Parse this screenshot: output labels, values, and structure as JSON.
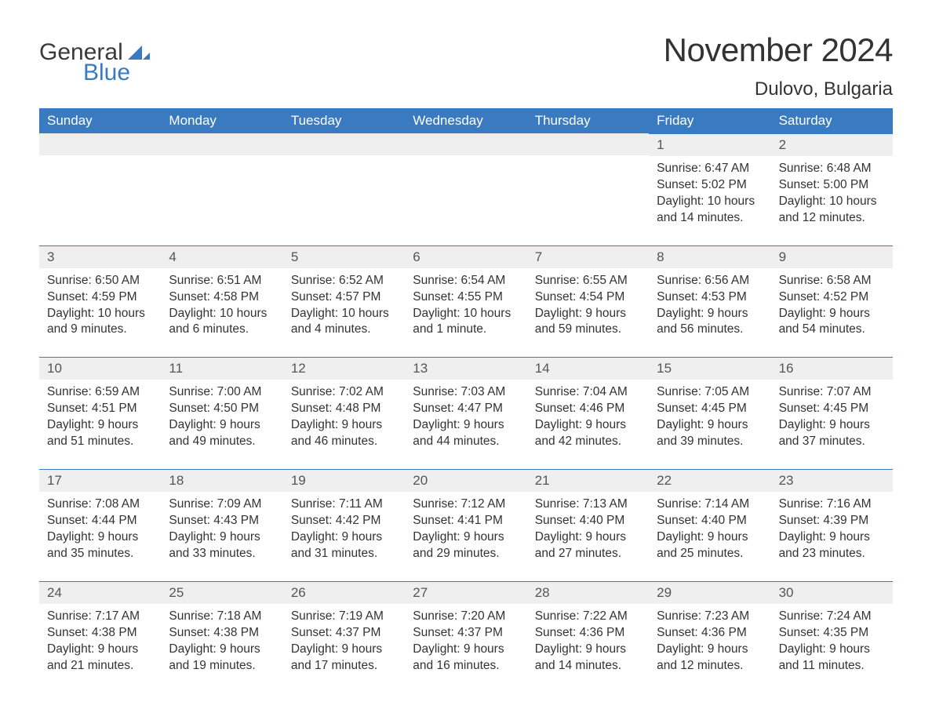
{
  "logo": {
    "text1": "General",
    "text2": "Blue"
  },
  "title": "November 2024",
  "location": "Dulovo, Bulgaria",
  "colors": {
    "header_bg": "#3a7ac0",
    "header_text": "#ffffff",
    "daynum_bg": "#efefef",
    "daynum_border": "#3a7ac0",
    "body_text": "#333333",
    "page_bg": "#ffffff"
  },
  "day_labels": [
    "Sunday",
    "Monday",
    "Tuesday",
    "Wednesday",
    "Thursday",
    "Friday",
    "Saturday"
  ],
  "weeks": [
    [
      null,
      null,
      null,
      null,
      null,
      {
        "n": "1",
        "sr": "Sunrise: 6:47 AM",
        "ss": "Sunset: 5:02 PM",
        "dl": "Daylight: 10 hours and 14 minutes."
      },
      {
        "n": "2",
        "sr": "Sunrise: 6:48 AM",
        "ss": "Sunset: 5:00 PM",
        "dl": "Daylight: 10 hours and 12 minutes."
      }
    ],
    [
      {
        "n": "3",
        "sr": "Sunrise: 6:50 AM",
        "ss": "Sunset: 4:59 PM",
        "dl": "Daylight: 10 hours and 9 minutes."
      },
      {
        "n": "4",
        "sr": "Sunrise: 6:51 AM",
        "ss": "Sunset: 4:58 PM",
        "dl": "Daylight: 10 hours and 6 minutes."
      },
      {
        "n": "5",
        "sr": "Sunrise: 6:52 AM",
        "ss": "Sunset: 4:57 PM",
        "dl": "Daylight: 10 hours and 4 minutes."
      },
      {
        "n": "6",
        "sr": "Sunrise: 6:54 AM",
        "ss": "Sunset: 4:55 PM",
        "dl": "Daylight: 10 hours and 1 minute."
      },
      {
        "n": "7",
        "sr": "Sunrise: 6:55 AM",
        "ss": "Sunset: 4:54 PM",
        "dl": "Daylight: 9 hours and 59 minutes."
      },
      {
        "n": "8",
        "sr": "Sunrise: 6:56 AM",
        "ss": "Sunset: 4:53 PM",
        "dl": "Daylight: 9 hours and 56 minutes."
      },
      {
        "n": "9",
        "sr": "Sunrise: 6:58 AM",
        "ss": "Sunset: 4:52 PM",
        "dl": "Daylight: 9 hours and 54 minutes."
      }
    ],
    [
      {
        "n": "10",
        "sr": "Sunrise: 6:59 AM",
        "ss": "Sunset: 4:51 PM",
        "dl": "Daylight: 9 hours and 51 minutes."
      },
      {
        "n": "11",
        "sr": "Sunrise: 7:00 AM",
        "ss": "Sunset: 4:50 PM",
        "dl": "Daylight: 9 hours and 49 minutes."
      },
      {
        "n": "12",
        "sr": "Sunrise: 7:02 AM",
        "ss": "Sunset: 4:48 PM",
        "dl": "Daylight: 9 hours and 46 minutes."
      },
      {
        "n": "13",
        "sr": "Sunrise: 7:03 AM",
        "ss": "Sunset: 4:47 PM",
        "dl": "Daylight: 9 hours and 44 minutes."
      },
      {
        "n": "14",
        "sr": "Sunrise: 7:04 AM",
        "ss": "Sunset: 4:46 PM",
        "dl": "Daylight: 9 hours and 42 minutes."
      },
      {
        "n": "15",
        "sr": "Sunrise: 7:05 AM",
        "ss": "Sunset: 4:45 PM",
        "dl": "Daylight: 9 hours and 39 minutes."
      },
      {
        "n": "16",
        "sr": "Sunrise: 7:07 AM",
        "ss": "Sunset: 4:45 PM",
        "dl": "Daylight: 9 hours and 37 minutes."
      }
    ],
    [
      {
        "n": "17",
        "sr": "Sunrise: 7:08 AM",
        "ss": "Sunset: 4:44 PM",
        "dl": "Daylight: 9 hours and 35 minutes."
      },
      {
        "n": "18",
        "sr": "Sunrise: 7:09 AM",
        "ss": "Sunset: 4:43 PM",
        "dl": "Daylight: 9 hours and 33 minutes."
      },
      {
        "n": "19",
        "sr": "Sunrise: 7:11 AM",
        "ss": "Sunset: 4:42 PM",
        "dl": "Daylight: 9 hours and 31 minutes."
      },
      {
        "n": "20",
        "sr": "Sunrise: 7:12 AM",
        "ss": "Sunset: 4:41 PM",
        "dl": "Daylight: 9 hours and 29 minutes."
      },
      {
        "n": "21",
        "sr": "Sunrise: 7:13 AM",
        "ss": "Sunset: 4:40 PM",
        "dl": "Daylight: 9 hours and 27 minutes."
      },
      {
        "n": "22",
        "sr": "Sunrise: 7:14 AM",
        "ss": "Sunset: 4:40 PM",
        "dl": "Daylight: 9 hours and 25 minutes."
      },
      {
        "n": "23",
        "sr": "Sunrise: 7:16 AM",
        "ss": "Sunset: 4:39 PM",
        "dl": "Daylight: 9 hours and 23 minutes."
      }
    ],
    [
      {
        "n": "24",
        "sr": "Sunrise: 7:17 AM",
        "ss": "Sunset: 4:38 PM",
        "dl": "Daylight: 9 hours and 21 minutes."
      },
      {
        "n": "25",
        "sr": "Sunrise: 7:18 AM",
        "ss": "Sunset: 4:38 PM",
        "dl": "Daylight: 9 hours and 19 minutes."
      },
      {
        "n": "26",
        "sr": "Sunrise: 7:19 AM",
        "ss": "Sunset: 4:37 PM",
        "dl": "Daylight: 9 hours and 17 minutes."
      },
      {
        "n": "27",
        "sr": "Sunrise: 7:20 AM",
        "ss": "Sunset: 4:37 PM",
        "dl": "Daylight: 9 hours and 16 minutes."
      },
      {
        "n": "28",
        "sr": "Sunrise: 7:22 AM",
        "ss": "Sunset: 4:36 PM",
        "dl": "Daylight: 9 hours and 14 minutes."
      },
      {
        "n": "29",
        "sr": "Sunrise: 7:23 AM",
        "ss": "Sunset: 4:36 PM",
        "dl": "Daylight: 9 hours and 12 minutes."
      },
      {
        "n": "30",
        "sr": "Sunrise: 7:24 AM",
        "ss": "Sunset: 4:35 PM",
        "dl": "Daylight: 9 hours and 11 minutes."
      }
    ]
  ]
}
